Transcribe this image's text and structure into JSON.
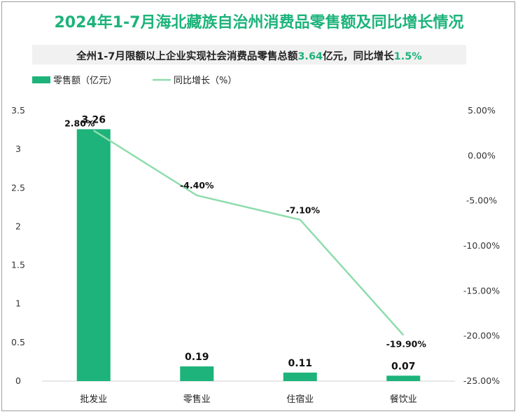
{
  "title": "2024年1-7月海北藏族自治州消费品零售额及同比增长情况",
  "subtitle": {
    "part1": "全州1-7月限额以上企业实现社会消费品零售总额",
    "value1": "3.64",
    "part2": "亿元，同比增长",
    "value2": "1.5%"
  },
  "colors": {
    "bar": "#1db37a",
    "line": "#8fdcad",
    "title": "#1db37a"
  },
  "chart_data": {
    "type": "bar+line",
    "categories": [
      "批发业",
      "零售业",
      "住宿业",
      "餐饮业"
    ],
    "series": [
      {
        "name": "零售额（亿元）",
        "type": "bar",
        "axis": "left",
        "values": [
          3.26,
          0.19,
          0.11,
          0.07
        ],
        "labels": [
          "3.26",
          "0.19",
          "0.11",
          "0.07"
        ]
      },
      {
        "name": "同比增长（%）",
        "type": "line",
        "axis": "right",
        "values": [
          2.8,
          -4.4,
          -7.1,
          -19.9
        ],
        "labels": [
          "2.80%",
          "-4.40%",
          "-7.10%",
          "-19.90%"
        ]
      }
    ],
    "y_left": {
      "ylim": [
        0,
        3.5
      ],
      "ticks": [
        "0",
        "0.5",
        "1",
        "1.5",
        "2",
        "2.5",
        "3",
        "3.5"
      ]
    },
    "y_right": {
      "ylim": [
        -25,
        5
      ],
      "ticks": [
        "5.00%",
        "0.00%",
        "-5.00%",
        "-10.00%",
        "-15.00%",
        "-20.00%",
        "-25.00%"
      ]
    },
    "legend": "top-left",
    "grid": false
  }
}
